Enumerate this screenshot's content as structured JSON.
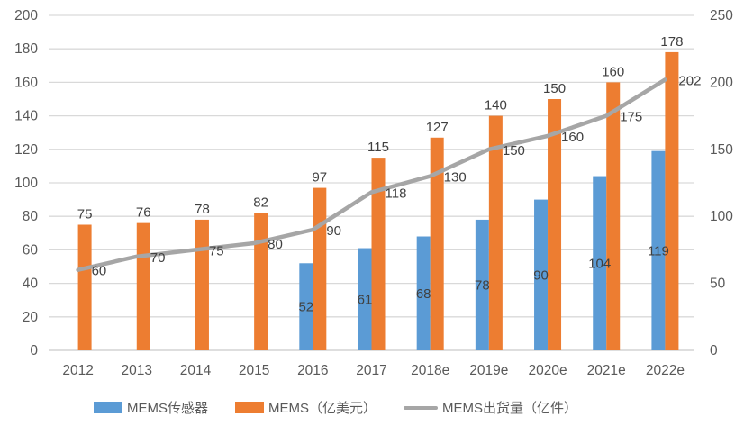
{
  "colors": {
    "bar_blue": "#5B9BD5",
    "bar_orange": "#ED7D31",
    "line_gray": "#A6A6A6",
    "gridline": "#D9D9D9",
    "axis_line": "#C9C9C9",
    "axis_text": "#595959",
    "label_text": "#404040",
    "background": "#FFFFFF"
  },
  "chart_data": {
    "type": "combo",
    "title": "",
    "categories": [
      "2012",
      "2013",
      "2014",
      "2015",
      "2016",
      "2017",
      "2018e",
      "2019e",
      "2020e",
      "2021e",
      "2022e"
    ],
    "series": [
      {
        "name": "MEMS传感器",
        "type": "bar",
        "axis": "left",
        "color": "#5B9BD5",
        "values": [
          null,
          null,
          null,
          null,
          52,
          61,
          68,
          78,
          90,
          104,
          119
        ],
        "label_position": "inside-center"
      },
      {
        "name": "MEMS（亿美元）",
        "type": "bar",
        "axis": "left",
        "color": "#ED7D31",
        "values": [
          75,
          76,
          78,
          82,
          97,
          115,
          127,
          140,
          150,
          160,
          178
        ],
        "label_position": "outside-above"
      },
      {
        "name": "MEMS出货量（亿件）",
        "type": "line",
        "axis": "right",
        "color": "#A6A6A6",
        "values": [
          60,
          70,
          75,
          80,
          90,
          118,
          130,
          150,
          160,
          175,
          202
        ],
        "label_position": "right"
      }
    ],
    "left_axis": {
      "min": 0,
      "max": 200,
      "step": 20,
      "ticks": [
        0,
        20,
        40,
        60,
        80,
        100,
        120,
        140,
        160,
        180,
        200
      ]
    },
    "right_axis": {
      "min": 0,
      "max": 250,
      "step": 50,
      "ticks": [
        0,
        50,
        100,
        150,
        200,
        250
      ]
    },
    "grid": "horizontal",
    "legend_position": "bottom"
  },
  "legend": {
    "items": [
      {
        "label": "MEMS传感器",
        "swatch": "rect",
        "color": "#5B9BD5"
      },
      {
        "label": "MEMS（亿美元）",
        "swatch": "rect",
        "color": "#ED7D31"
      },
      {
        "label": "MEMS出货量（亿件）",
        "swatch": "line",
        "color": "#A6A6A6"
      }
    ]
  }
}
